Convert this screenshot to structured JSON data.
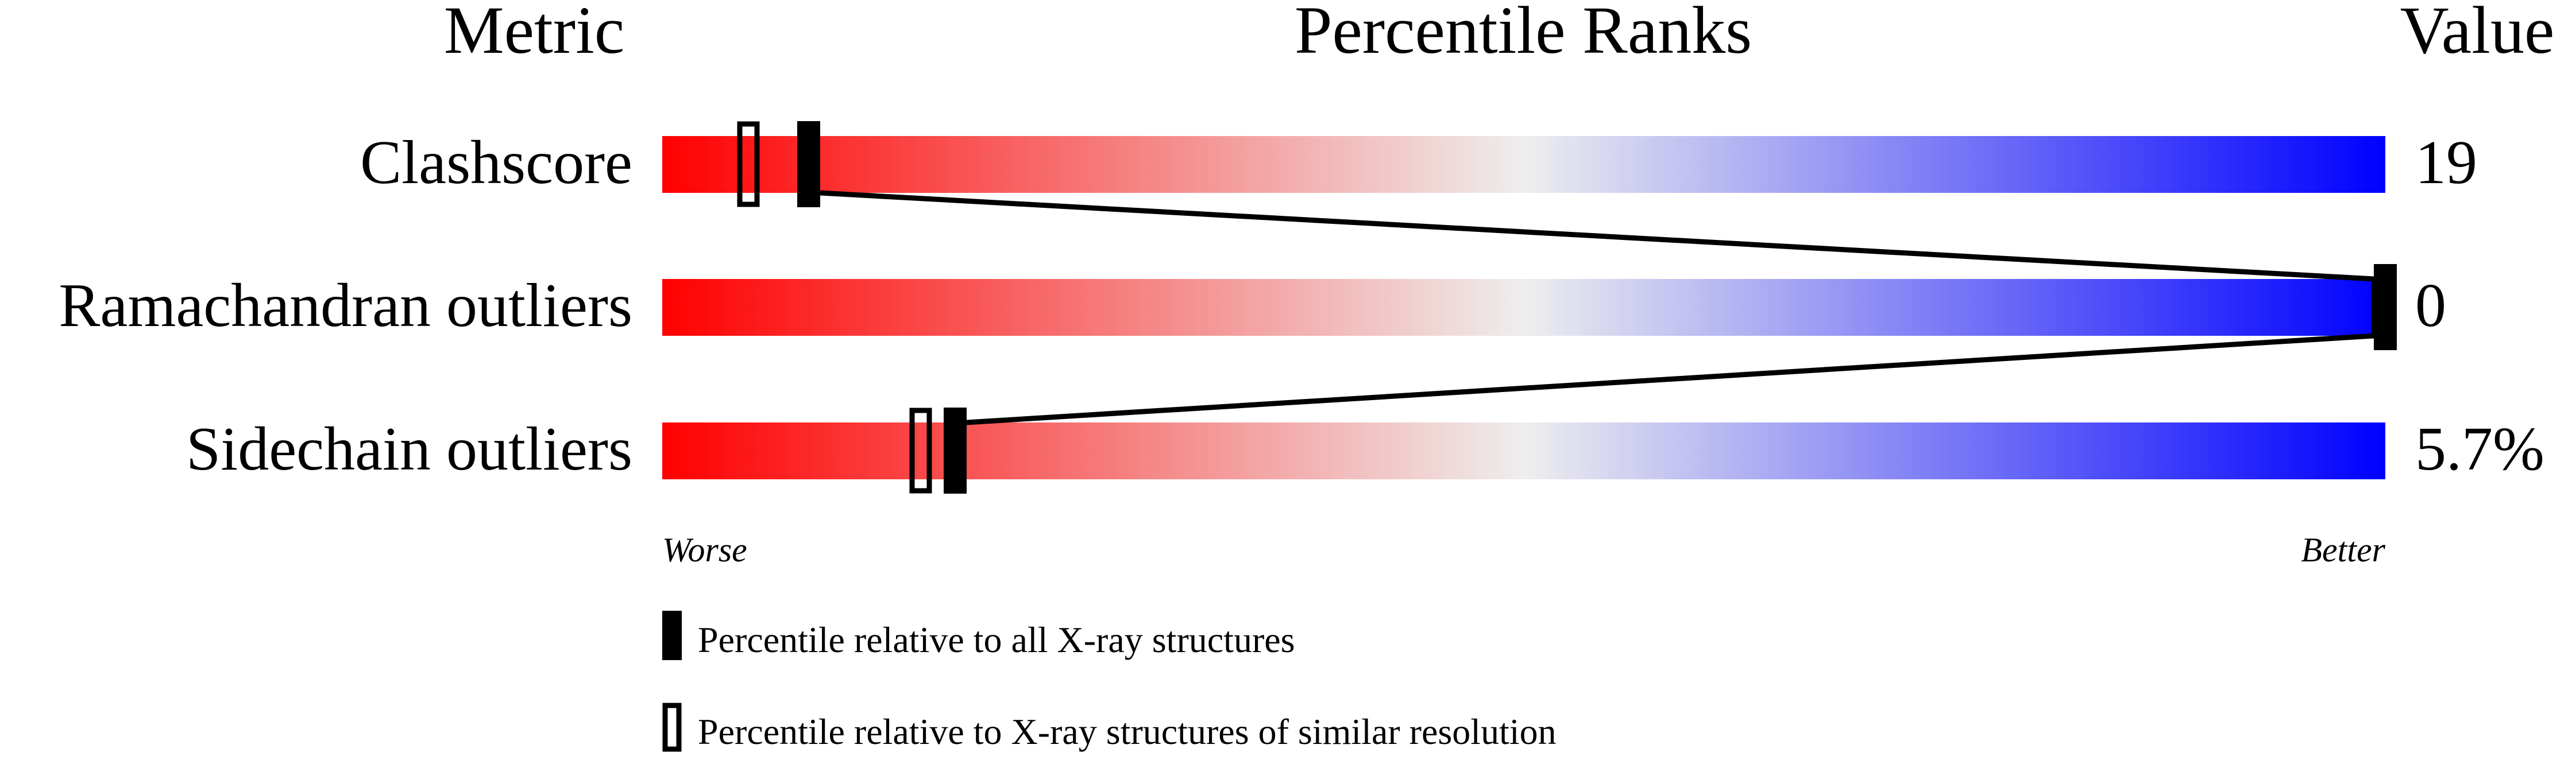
{
  "chart_data": {
    "type": "percentile-bar",
    "headers": {
      "metric": "Metric",
      "ranks": "Percentile Ranks",
      "value": "Value"
    },
    "xlim": [
      0,
      100
    ],
    "axis_labels": {
      "worse": "Worse",
      "better": "Better"
    },
    "colors": {
      "worse": "#ff0000",
      "middle": "#eeeeee",
      "better": "#0000ff",
      "marker": "#000000"
    },
    "metrics": [
      {
        "name": "Clashscore",
        "value": "19",
        "percentile_all": 8.5,
        "percentile_similar": 5
      },
      {
        "name": "Ramachandran outliers",
        "value": "0",
        "percentile_all": 100,
        "percentile_similar": null
      },
      {
        "name": "Sidechain outliers",
        "value": "5.7%",
        "percentile_all": 17,
        "percentile_similar": 15
      }
    ],
    "legend": [
      {
        "marker": "filled",
        "label": "Percentile relative to all X-ray structures"
      },
      {
        "marker": "open",
        "label": "Percentile relative to X-ray structures of similar resolution"
      }
    ]
  }
}
